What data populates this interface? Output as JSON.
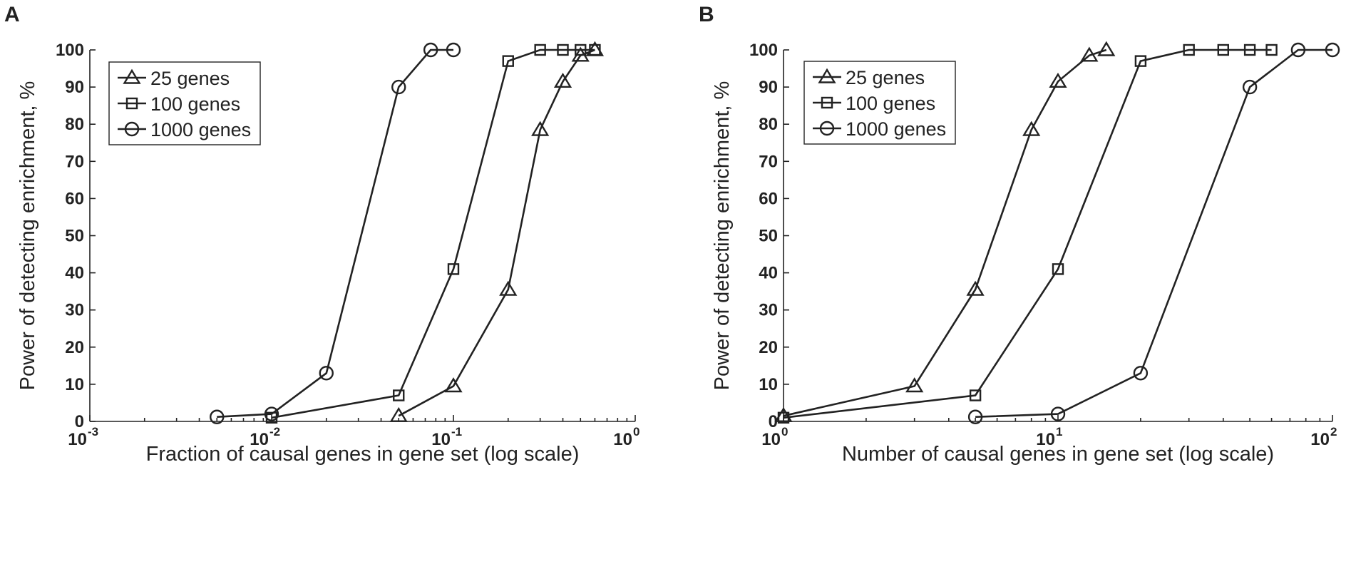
{
  "chart_data": [
    {
      "panel_label": "A",
      "type": "line",
      "xscale": "log",
      "xlim": [
        0.001,
        1
      ],
      "ylim": [
        0,
        100
      ],
      "xticks": [
        0.001,
        0.01,
        0.1,
        1
      ],
      "xtick_labels": [
        {
          "base": "10",
          "exp": "-3"
        },
        {
          "base": "10",
          "exp": "-2"
        },
        {
          "base": "10",
          "exp": "-1"
        },
        {
          "base": "10",
          "exp": "0"
        }
      ],
      "yticks": [
        0,
        10,
        20,
        30,
        40,
        50,
        60,
        70,
        80,
        90,
        100
      ],
      "xlabel": "Fraction of causal genes in gene set (log scale)",
      "ylabel": "Power of detecting enrichment, %",
      "grid": false,
      "legend": "top-left",
      "series": [
        {
          "name": "25 genes",
          "marker": "triangle",
          "x": [
            0.05,
            0.1,
            0.2,
            0.3,
            0.4,
            0.5,
            0.6
          ],
          "y": [
            1.5,
            9.5,
            35.5,
            78.5,
            91.5,
            98.5,
            100
          ]
        },
        {
          "name": "100 genes",
          "marker": "square",
          "x": [
            0.01,
            0.05,
            0.1,
            0.2,
            0.3,
            0.4,
            0.5,
            0.6
          ],
          "y": [
            1,
            7,
            41,
            97,
            100,
            100,
            100,
            100
          ]
        },
        {
          "name": "1000 genes",
          "marker": "circle",
          "x": [
            0.005,
            0.01,
            0.02,
            0.05,
            0.075,
            0.1
          ],
          "y": [
            1.2,
            2,
            13,
            90,
            100,
            100
          ]
        }
      ]
    },
    {
      "panel_label": "B",
      "type": "line",
      "xscale": "log",
      "xlim": [
        1,
        100
      ],
      "ylim": [
        0,
        100
      ],
      "xticks": [
        1,
        10,
        100
      ],
      "xtick_labels": [
        {
          "base": "10",
          "exp": "0"
        },
        {
          "base": "10",
          "exp": "1"
        },
        {
          "base": "10",
          "exp": "2"
        }
      ],
      "yticks": [
        0,
        10,
        20,
        30,
        40,
        50,
        60,
        70,
        80,
        90,
        100
      ],
      "xlabel": "Number of causal genes in gene set (log scale)",
      "ylabel": "Power of detecting enrichment, %",
      "grid": false,
      "legend": "top-left",
      "series": [
        {
          "name": "25 genes",
          "marker": "triangle",
          "x": [
            1,
            3,
            5,
            8,
            10,
            13,
            15
          ],
          "y": [
            1.5,
            9.5,
            35.5,
            78.5,
            91.5,
            98.5,
            100
          ]
        },
        {
          "name": "100 genes",
          "marker": "square",
          "x": [
            1,
            5,
            10,
            20,
            30,
            40,
            50,
            60
          ],
          "y": [
            1,
            7,
            41,
            97,
            100,
            100,
            100,
            100
          ]
        },
        {
          "name": "1000 genes",
          "marker": "circle",
          "x": [
            5,
            10,
            20,
            50,
            75,
            100
          ],
          "y": [
            1.2,
            2,
            13,
            90,
            100,
            100
          ]
        }
      ]
    }
  ]
}
